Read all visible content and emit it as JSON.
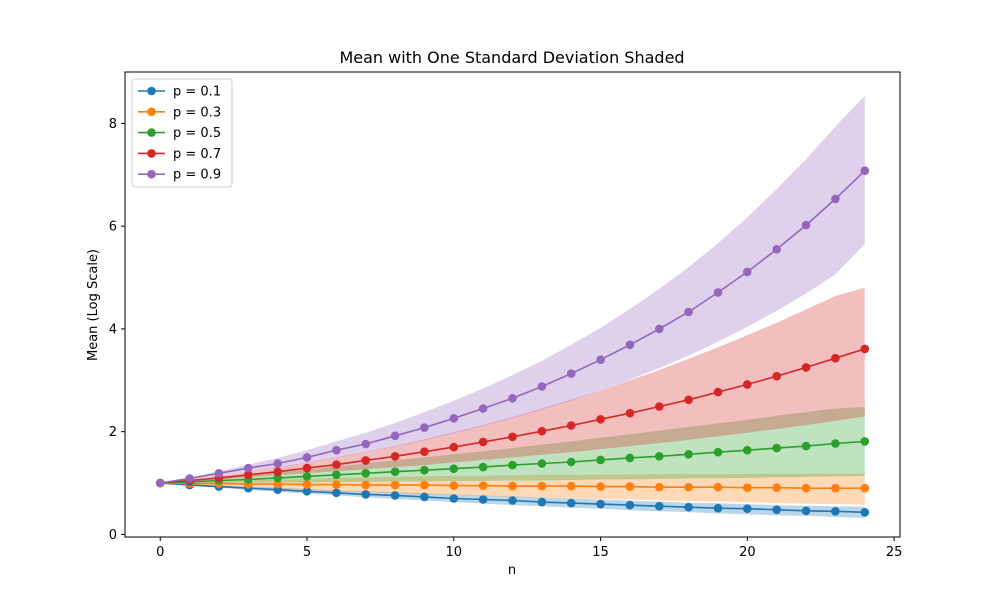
{
  "chart_data": {
    "type": "line",
    "title": "Mean with One Standard Deviation Shaded",
    "xlabel": "n",
    "ylabel": "Mean (Log Scale)",
    "xlim": [
      -1.2,
      25.2
    ],
    "ylim": [
      -0.05,
      9.0
    ],
    "xticks": [
      0,
      5,
      10,
      15,
      20,
      25
    ],
    "yticks": [
      0,
      2,
      4,
      6,
      8
    ],
    "grid": false,
    "legend_position": "top-left",
    "x": [
      0,
      1,
      2,
      3,
      4,
      5,
      6,
      7,
      8,
      9,
      10,
      11,
      12,
      13,
      14,
      15,
      16,
      17,
      18,
      19,
      20,
      21,
      22,
      23,
      24
    ],
    "series": [
      {
        "name": "p = 0.1",
        "color": "#1f77b4",
        "values": [
          1.0,
          0.96,
          0.93,
          0.9,
          0.87,
          0.84,
          0.81,
          0.78,
          0.76,
          0.73,
          0.7,
          0.68,
          0.66,
          0.63,
          0.61,
          0.59,
          0.57,
          0.55,
          0.53,
          0.51,
          0.5,
          0.48,
          0.46,
          0.45,
          0.43
        ],
        "lower": [
          1.0,
          0.95,
          0.91,
          0.87,
          0.83,
          0.79,
          0.76,
          0.72,
          0.69,
          0.66,
          0.63,
          0.6,
          0.57,
          0.55,
          0.52,
          0.5,
          0.47,
          0.45,
          0.43,
          0.41,
          0.39,
          0.37,
          0.36,
          0.34,
          0.32
        ],
        "upper": [
          1.0,
          0.97,
          0.95,
          0.93,
          0.91,
          0.89,
          0.86,
          0.84,
          0.82,
          0.8,
          0.78,
          0.76,
          0.74,
          0.72,
          0.7,
          0.68,
          0.66,
          0.64,
          0.62,
          0.61,
          0.59,
          0.57,
          0.56,
          0.55,
          0.54
        ]
      },
      {
        "name": "p = 0.3",
        "color": "#ff7f0e",
        "values": [
          1.0,
          0.99,
          0.99,
          0.98,
          0.98,
          0.97,
          0.97,
          0.96,
          0.96,
          0.96,
          0.95,
          0.95,
          0.94,
          0.94,
          0.94,
          0.93,
          0.93,
          0.92,
          0.92,
          0.92,
          0.91,
          0.91,
          0.9,
          0.9,
          0.9
        ],
        "lower": [
          1.0,
          0.97,
          0.94,
          0.91,
          0.89,
          0.87,
          0.84,
          0.82,
          0.8,
          0.78,
          0.77,
          0.75,
          0.73,
          0.72,
          0.7,
          0.69,
          0.68,
          0.66,
          0.65,
          0.64,
          0.63,
          0.61,
          0.6,
          0.59,
          0.58
        ],
        "upper": [
          1.0,
          1.01,
          1.03,
          1.05,
          1.07,
          1.08,
          1.1,
          1.11,
          1.12,
          1.13,
          1.14,
          1.14,
          1.15,
          1.16,
          1.16,
          1.16,
          1.17,
          1.17,
          1.17,
          1.17,
          1.18,
          1.18,
          1.18,
          1.18,
          1.18
        ]
      },
      {
        "name": "p = 0.5",
        "color": "#2ca02c",
        "values": [
          1.0,
          1.02,
          1.05,
          1.07,
          1.1,
          1.13,
          1.16,
          1.19,
          1.22,
          1.25,
          1.28,
          1.31,
          1.35,
          1.38,
          1.41,
          1.45,
          1.49,
          1.52,
          1.56,
          1.6,
          1.64,
          1.68,
          1.72,
          1.77,
          1.81
        ],
        "lower": [
          1.0,
          1.0,
          1.0,
          1.01,
          1.01,
          1.01,
          1.02,
          1.02,
          1.03,
          1.03,
          1.04,
          1.04,
          1.05,
          1.05,
          1.06,
          1.07,
          1.07,
          1.08,
          1.09,
          1.09,
          1.1,
          1.11,
          1.12,
          1.13,
          1.14
        ],
        "upper": [
          1.0,
          1.05,
          1.1,
          1.16,
          1.21,
          1.26,
          1.32,
          1.38,
          1.44,
          1.5,
          1.56,
          1.62,
          1.68,
          1.75,
          1.81,
          1.88,
          1.95,
          2.02,
          2.09,
          2.16,
          2.23,
          2.31,
          2.38,
          2.45,
          2.48
        ]
      },
      {
        "name": "p = 0.7",
        "color": "#d62728",
        "values": [
          1.0,
          1.05,
          1.1,
          1.16,
          1.22,
          1.29,
          1.36,
          1.44,
          1.52,
          1.61,
          1.7,
          1.8,
          1.9,
          2.01,
          2.12,
          2.24,
          2.36,
          2.49,
          2.62,
          2.77,
          2.92,
          3.08,
          3.25,
          3.43,
          3.61
        ],
        "lower": [
          1.0,
          1.03,
          1.07,
          1.11,
          1.15,
          1.19,
          1.23,
          1.27,
          1.31,
          1.35,
          1.4,
          1.45,
          1.5,
          1.55,
          1.6,
          1.66,
          1.72,
          1.78,
          1.84,
          1.91,
          1.98,
          2.05,
          2.13,
          2.21,
          2.3
        ],
        "upper": [
          1.0,
          1.07,
          1.14,
          1.22,
          1.31,
          1.4,
          1.5,
          1.61,
          1.72,
          1.85,
          1.99,
          2.13,
          2.28,
          2.45,
          2.62,
          2.8,
          3.0,
          3.2,
          3.42,
          3.64,
          3.88,
          4.12,
          4.38,
          4.64,
          4.8
        ]
      },
      {
        "name": "p = 0.9",
        "color": "#9467bd",
        "values": [
          1.0,
          1.09,
          1.19,
          1.29,
          1.38,
          1.5,
          1.64,
          1.76,
          1.92,
          2.08,
          2.26,
          2.45,
          2.65,
          2.88,
          3.13,
          3.4,
          3.69,
          4.0,
          4.33,
          4.71,
          5.11,
          5.55,
          6.02,
          6.53,
          7.08
        ],
        "lower": [
          1.0,
          1.07,
          1.14,
          1.22,
          1.3,
          1.39,
          1.49,
          1.6,
          1.71,
          1.83,
          1.97,
          2.11,
          2.26,
          2.43,
          2.6,
          2.8,
          3.01,
          3.24,
          3.48,
          3.75,
          4.04,
          4.35,
          4.69,
          5.06,
          5.65
        ],
        "upper": [
          1.0,
          1.11,
          1.23,
          1.36,
          1.49,
          1.64,
          1.81,
          1.98,
          2.17,
          2.38,
          2.6,
          2.84,
          3.1,
          3.38,
          3.69,
          4.02,
          4.39,
          4.78,
          5.2,
          5.67,
          6.17,
          6.72,
          7.3,
          7.94,
          8.54
        ]
      }
    ]
  }
}
